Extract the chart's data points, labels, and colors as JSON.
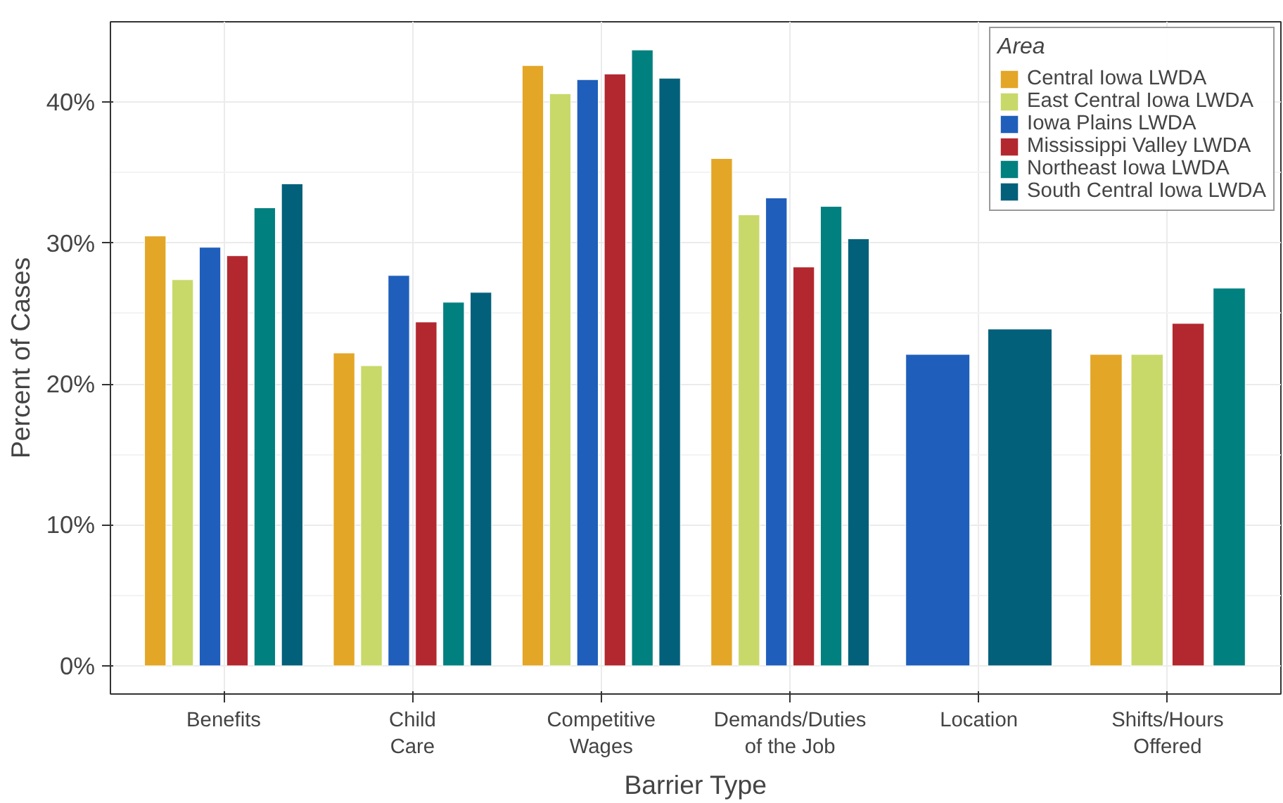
{
  "chart_data": {
    "type": "bar",
    "xlabel": "Barrier Type",
    "ylabel": "Percent of Cases",
    "legend_title": "Area",
    "categories": [
      "Benefits",
      "Child\nCare",
      "Competitive\nWages",
      "Demands/Duties\nof the Job",
      "Location",
      "Shifts/Hours\nOffered"
    ],
    "series": [
      {
        "name": "Central Iowa LWDA",
        "color": "#e3a626",
        "values": [
          30.5,
          22.2,
          42.6,
          36.0,
          null,
          22.1
        ]
      },
      {
        "name": "East Central Iowa LWDA",
        "color": "#c8d96a",
        "values": [
          27.4,
          21.3,
          40.6,
          32.0,
          null,
          22.1
        ]
      },
      {
        "name": "Iowa Plains LWDA",
        "color": "#1f5fbb",
        "values": [
          29.7,
          27.7,
          41.6,
          33.2,
          22.1,
          null
        ]
      },
      {
        "name": "Mississippi Valley LWDA",
        "color": "#b3282f",
        "values": [
          29.1,
          24.4,
          42.0,
          28.3,
          null,
          24.3
        ]
      },
      {
        "name": "Northeast Iowa LWDA",
        "color": "#00807f",
        "values": [
          32.5,
          25.8,
          43.7,
          32.6,
          null,
          26.8
        ]
      },
      {
        "name": "South Central Iowa LWDA",
        "color": "#03607a",
        "values": [
          34.2,
          26.5,
          41.7,
          30.3,
          23.9,
          null
        ]
      }
    ],
    "ylim": [
      -2,
      45.7
    ],
    "yticks": [
      {
        "value": 0,
        "label": "0%"
      },
      {
        "value": 10,
        "label": "10%"
      },
      {
        "value": 20,
        "label": "20%"
      },
      {
        "value": 30,
        "label": "30%"
      },
      {
        "value": 40,
        "label": "40%"
      }
    ],
    "grid": true,
    "legend": "top right"
  }
}
